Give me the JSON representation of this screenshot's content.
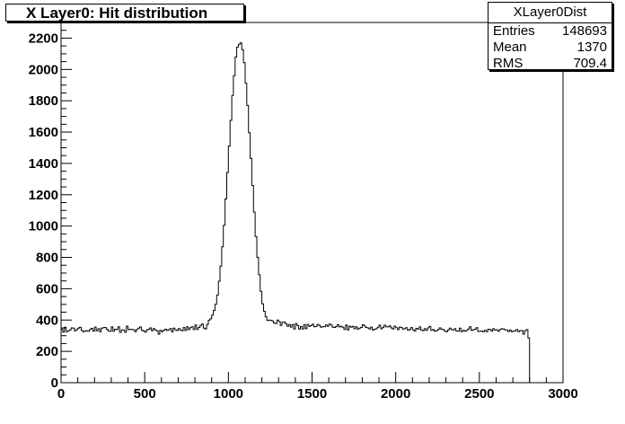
{
  "title": "X Layer0: Hit distribution",
  "stats": {
    "name": "XLayer0Dist",
    "rows": [
      {
        "label": "Entries",
        "value": "148693"
      },
      {
        "label": "Mean",
        "value": "1370"
      },
      {
        "label": "RMS",
        "value": "709.4"
      }
    ]
  },
  "chart_data": {
    "type": "bar",
    "title": "X Layer0: Hit distribution",
    "xlabel": "",
    "ylabel": "",
    "xlim": [
      0,
      3000
    ],
    "ylim": [
      0,
      2300
    ],
    "xticks": [
      "0",
      "500",
      "1000",
      "1500",
      "2000",
      "2500",
      "3000"
    ],
    "yticks": [
      "0",
      "200",
      "400",
      "600",
      "800",
      "1000",
      "1200",
      "1400",
      "1600",
      "1800",
      "2000",
      "2200"
    ],
    "bin_width": 10,
    "x_start": 0,
    "grid": false,
    "legend": "none",
    "values": [
      342,
      323,
      354,
      326,
      332,
      337,
      350,
      348,
      331,
      339,
      349,
      354,
      333,
      325,
      330,
      332,
      328,
      340,
      347,
      329,
      355,
      331,
      345,
      325,
      349,
      351,
      353,
      341,
      330,
      328,
      356,
      328,
      341,
      339,
      357,
      321,
      337,
      336,
      322,
      361,
      339,
      341,
      339,
      338,
      326,
      340,
      348,
      356,
      334,
      330,
      323,
      337,
      341,
      350,
      332,
      346,
      336,
      331,
      310,
      334,
      325,
      335,
      341,
      333,
      338,
      346,
      324,
      348,
      337,
      333,
      346,
      336,
      332,
      352,
      333,
      357,
      339,
      351,
      357,
      339,
      368,
      340,
      353,
      366,
      374,
      349,
      343,
      372,
      399,
      408,
      431,
      462,
      501,
      560,
      648,
      744,
      868,
      1005,
      1173,
      1342,
      1511,
      1675,
      1833,
      1960,
      2079,
      2143,
      2161,
      2169,
      2126,
      2043,
      1912,
      1770,
      1596,
      1432,
      1259,
      1089,
      933,
      800,
      689,
      584,
      503,
      456,
      421,
      397,
      399,
      398,
      394,
      381,
      378,
      400,
      390,
      366,
      386,
      388,
      376,
      360,
      371,
      355,
      371,
      343,
      378,
      365,
      342,
      359,
      343,
      371,
      345,
      372,
      360,
      365,
      373,
      357,
      359,
      372,
      366,
      354,
      358,
      357,
      369,
      360,
      374,
      368,
      355,
      353,
      358,
      370,
      356,
      361,
      354,
      340,
      368,
      337,
      361,
      354,
      360,
      344,
      357,
      342,
      349,
      353,
      370,
      362,
      353,
      350,
      343,
      355,
      336,
      341,
      344,
      354,
      367,
      344,
      352,
      367,
      357,
      356,
      363,
      350,
      343,
      361,
      351,
      339,
      355,
      352,
      342,
      345,
      351,
      335,
      340,
      352,
      338,
      330,
      347,
      342,
      356,
      336,
      332,
      345,
      334,
      350,
      359,
      334,
      339,
      328,
      332,
      339,
      350,
      341,
      340,
      329,
      325,
      336,
      348,
      339,
      337,
      345,
      330,
      329,
      348,
      325,
      334,
      328,
      333,
      343,
      357,
      334,
      338,
      341,
      351,
      327,
      328,
      330,
      326,
      334,
      325,
      341,
      339,
      329,
      345,
      336,
      338,
      328,
      339,
      345,
      343,
      338,
      336,
      327,
      336,
      326,
      329,
      332,
      339,
      326,
      332,
      333,
      310,
      331,
      339,
      286,
      0
    ]
  }
}
